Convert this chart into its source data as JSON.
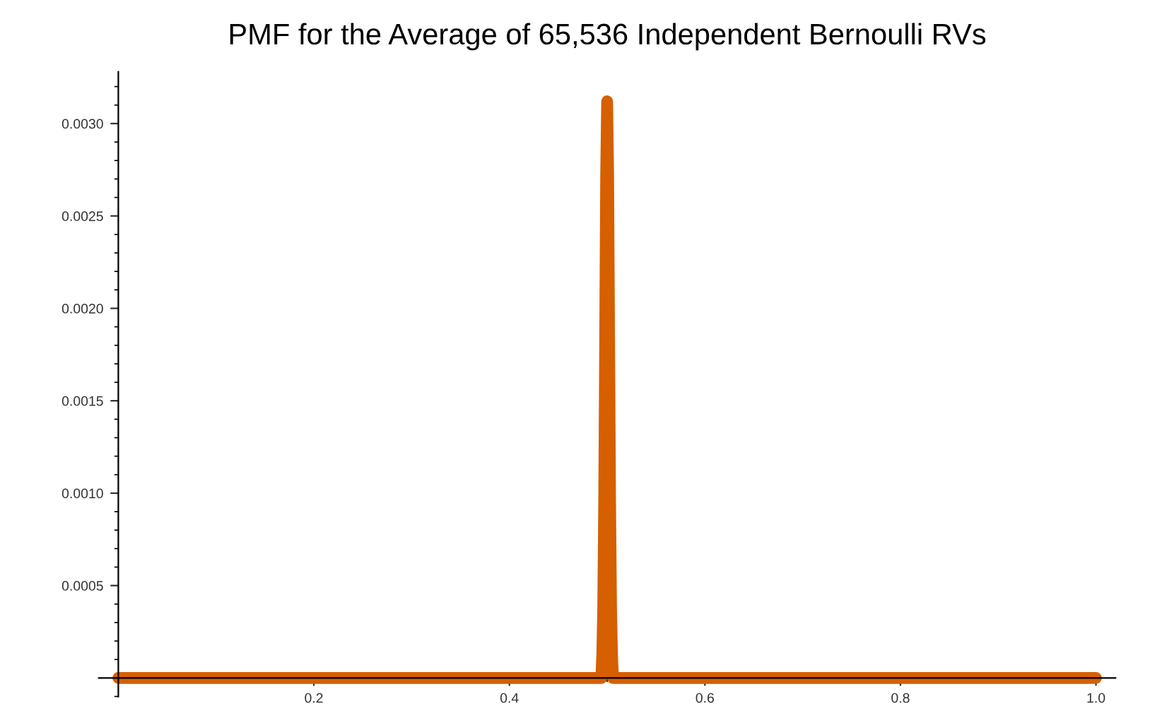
{
  "chart_data": {
    "type": "line",
    "title": "PMF for the Average of 65,536 Independent Bernoulli RVs",
    "x": [
      0,
      0.2,
      0.4,
      0.48,
      0.494,
      0.495,
      0.496,
      0.497,
      0.498,
      0.499,
      0.5,
      0.501,
      0.502,
      0.503,
      0.504,
      0.505,
      0.506,
      0.52,
      0.6,
      0.8,
      1
    ],
    "series": [
      {
        "color": "#d65f00",
        "values": [
          0,
          0,
          0,
          0,
          0,
          0.00012,
          0.00038,
          0.00096,
          0.00184,
          0.00273,
          0.00312,
          0.00273,
          0.00184,
          0.00096,
          0.00038,
          0.00012,
          0,
          0,
          0,
          0,
          0
        ]
      }
    ],
    "xlim": [
      -0.02,
      1.02
    ],
    "ylim": [
      -0.0001,
      0.00328
    ],
    "xticks": [
      0.2,
      0.4,
      0.6,
      0.8,
      {
        "value": 1,
        "label": "1.0"
      }
    ],
    "yticks": [
      0.0005,
      {
        "value": 0.001,
        "label": "0.0010"
      },
      0.0015,
      {
        "value": 0.002,
        "label": "0.0020"
      },
      0.0025,
      {
        "value": 0.003,
        "label": "0.0030"
      }
    ],
    "grid": false,
    "legend": false,
    "marker": "none",
    "line_style": "solid"
  }
}
